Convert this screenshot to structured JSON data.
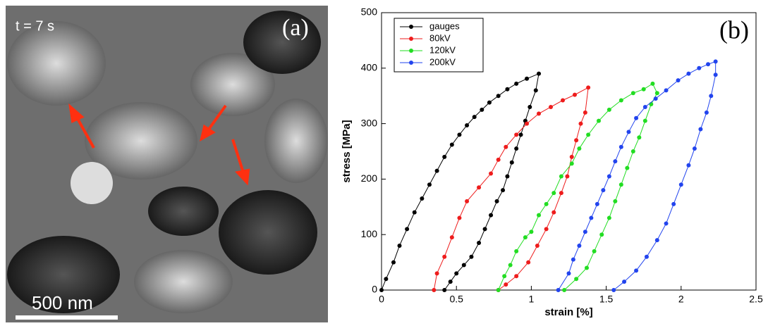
{
  "panel_a": {
    "time_label": "t =  7 s",
    "panel_label": "(a)",
    "scale_label": "500 nm"
  },
  "chart_data": {
    "type": "line",
    "panel_label": "(b)",
    "xlabel": "strain [%]",
    "ylabel": "stress [MPa]",
    "xlim": [
      0,
      2.5
    ],
    "ylim": [
      0,
      500
    ],
    "xticks": [
      0,
      0.5,
      1,
      1.5,
      2,
      2.5
    ],
    "yticks": [
      0,
      100,
      200,
      300,
      400,
      500
    ],
    "legend": "upper left",
    "series": [
      {
        "name": "gauges",
        "color": "#000000",
        "x": [
          0,
          0.03,
          0.08,
          0.12,
          0.17,
          0.22,
          0.27,
          0.32,
          0.37,
          0.42,
          0.47,
          0.52,
          0.57,
          0.62,
          0.67,
          0.72,
          0.78,
          0.84,
          0.9,
          0.97,
          1.05,
          1.03,
          0.99,
          0.96,
          0.93,
          0.9,
          0.87,
          0.84,
          0.81,
          0.77,
          0.73,
          0.69,
          0.65,
          0.6,
          0.55,
          0.5,
          0.46,
          0.42
        ],
        "values": [
          0,
          20,
          50,
          80,
          110,
          140,
          165,
          190,
          215,
          240,
          262,
          280,
          297,
          312,
          325,
          338,
          350,
          362,
          372,
          381,
          390,
          360,
          330,
          305,
          280,
          255,
          230,
          205,
          180,
          160,
          135,
          110,
          85,
          60,
          45,
          30,
          15,
          0
        ]
      },
      {
        "name": "80kV",
        "color": "#ee1c1c",
        "x": [
          0.35,
          0.37,
          0.42,
          0.47,
          0.52,
          0.57,
          0.65,
          0.73,
          0.78,
          0.83,
          0.9,
          0.97,
          1.05,
          1.13,
          1.21,
          1.29,
          1.38,
          1.36,
          1.33,
          1.3,
          1.27,
          1.24,
          1.2,
          1.15,
          1.1,
          1.04,
          0.98,
          0.9,
          0.83,
          0.78
        ],
        "values": [
          0,
          30,
          60,
          95,
          130,
          160,
          185,
          210,
          235,
          258,
          280,
          300,
          318,
          330,
          342,
          352,
          365,
          320,
          300,
          270,
          240,
          205,
          175,
          140,
          110,
          80,
          50,
          25,
          10,
          0
        ]
      },
      {
        "name": "120kV",
        "color": "#22dd22",
        "x": [
          0.78,
          0.82,
          0.86,
          0.9,
          0.96,
          1.0,
          1.05,
          1.1,
          1.15,
          1.2,
          1.27,
          1.32,
          1.38,
          1.45,
          1.52,
          1.6,
          1.68,
          1.75,
          1.81,
          1.84,
          1.8,
          1.76,
          1.72,
          1.68,
          1.64,
          1.6,
          1.56,
          1.52,
          1.47,
          1.42,
          1.37,
          1.3,
          1.22
        ],
        "values": [
          0,
          25,
          45,
          70,
          95,
          105,
          135,
          155,
          175,
          205,
          228,
          255,
          280,
          305,
          325,
          342,
          355,
          362,
          372,
          355,
          335,
          305,
          275,
          250,
          220,
          190,
          160,
          130,
          100,
          70,
          40,
          20,
          0
        ]
      },
      {
        "name": "200kV",
        "color": "#2244ee",
        "x": [
          1.18,
          1.25,
          1.28,
          1.32,
          1.36,
          1.4,
          1.44,
          1.48,
          1.52,
          1.56,
          1.6,
          1.65,
          1.7,
          1.76,
          1.83,
          1.9,
          1.98,
          2.05,
          2.12,
          2.18,
          2.23,
          2.23,
          2.2,
          2.17,
          2.13,
          2.09,
          2.05,
          2.0,
          1.95,
          1.9,
          1.84,
          1.77,
          1.7,
          1.62,
          1.55
        ],
        "values": [
          0,
          30,
          55,
          80,
          105,
          130,
          155,
          180,
          205,
          232,
          258,
          285,
          310,
          330,
          345,
          360,
          378,
          390,
          400,
          407,
          412,
          388,
          350,
          320,
          290,
          255,
          225,
          190,
          155,
          120,
          90,
          60,
          35,
          15,
          0
        ]
      }
    ]
  }
}
